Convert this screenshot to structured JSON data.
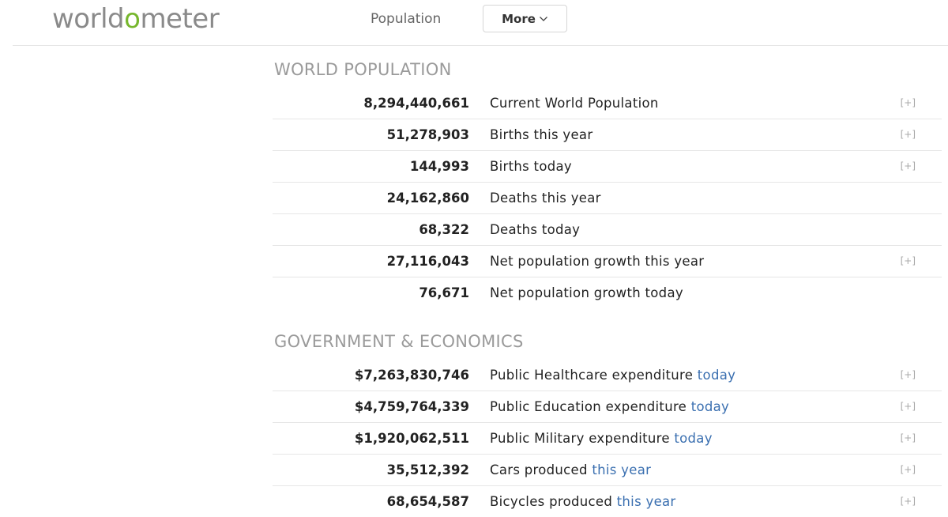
{
  "header": {
    "logo": {
      "part1": "world",
      "part2": "o",
      "part3": "meter"
    },
    "nav_population": "Population",
    "more_label": "More",
    "more_icon": "chevron-down-icon"
  },
  "sections": [
    {
      "title": "WORLD POPULATION",
      "rows": [
        {
          "value": "8,294,440,661",
          "label": "Current World Population",
          "link": "",
          "plus": "[+]"
        },
        {
          "value": "51,278,903",
          "label": "Births this year",
          "link": "",
          "plus": "[+]"
        },
        {
          "value": "144,993",
          "label": "Births today",
          "link": "",
          "plus": "[+]"
        },
        {
          "value": "24,162,860",
          "label": "Deaths this year",
          "link": "",
          "plus": ""
        },
        {
          "value": "68,322",
          "label": "Deaths today",
          "link": "",
          "plus": ""
        },
        {
          "value": "27,116,043",
          "label": "Net population growth this year",
          "link": "",
          "plus": "[+]"
        },
        {
          "value": "76,671",
          "label": "Net population growth today",
          "link": "",
          "plus": ""
        }
      ]
    },
    {
      "title": "GOVERNMENT & ECONOMICS",
      "rows": [
        {
          "value": "$7,263,830,746",
          "label": "Public Healthcare expenditure ",
          "link": "today",
          "plus": "[+]"
        },
        {
          "value": "$4,759,764,339",
          "label": "Public Education expenditure ",
          "link": "today",
          "plus": "[+]"
        },
        {
          "value": "$1,920,062,511",
          "label": "Public Military expenditure ",
          "link": "today",
          "plus": "[+]"
        },
        {
          "value": "35,512,392",
          "label": "Cars produced ",
          "link": "this year",
          "plus": "[+]"
        },
        {
          "value": "68,654,587",
          "label": "Bicycles produced ",
          "link": "this year",
          "plus": "[+]"
        }
      ]
    }
  ],
  "colors": {
    "logo_gray": "#8a8a8a",
    "logo_green": "#77b72e",
    "link_blue": "#3a6fb0",
    "section_gray": "#9a9a9a"
  }
}
